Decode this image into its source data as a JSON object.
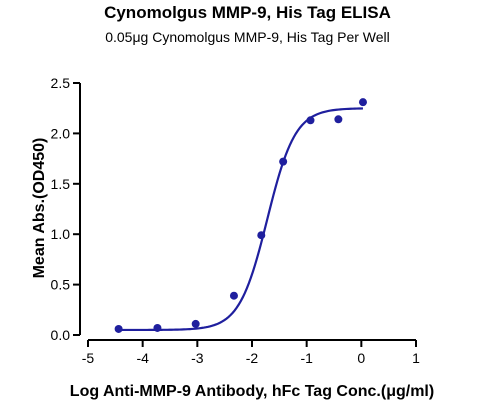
{
  "chart_data": {
    "type": "scatter",
    "title": "Cynomolgus MMP-9, His Tag ELISA",
    "subtitle": "0.05μg Cynomolgus MMP-9, His Tag Per Well",
    "xlabel": "Log Anti-MMP-9 Antibody, hFc Tag Conc.(μg/ml)",
    "ylabel": "Mean Abs.(OD450)",
    "xlim": [
      -5,
      1
    ],
    "ylim": [
      0,
      2.5
    ],
    "x_ticks": [
      "-5",
      "-4",
      "-3",
      "-2",
      "-1",
      "0",
      "1"
    ],
    "y_ticks": [
      "0.0",
      "0.5",
      "1.0",
      "1.5",
      "2.0",
      "2.5"
    ],
    "grid": false,
    "colors": {
      "series": "#1f1f9e"
    },
    "series": [
      {
        "name": "",
        "points": [
          {
            "x": -4.44,
            "y": 0.06
          },
          {
            "x": -3.73,
            "y": 0.07
          },
          {
            "x": -3.03,
            "y": 0.11
          },
          {
            "x": -2.33,
            "y": 0.39
          },
          {
            "x": -1.83,
            "y": 0.99
          },
          {
            "x": -1.43,
            "y": 1.72
          },
          {
            "x": -0.93,
            "y": 2.13
          },
          {
            "x": -0.42,
            "y": 2.14
          },
          {
            "x": 0.03,
            "y": 2.31
          }
        ],
        "fit": {
          "model": "4PL",
          "bottom": 0.05,
          "top": 2.25,
          "logEC50": -1.72,
          "hill": 1.7
        }
      }
    ]
  }
}
